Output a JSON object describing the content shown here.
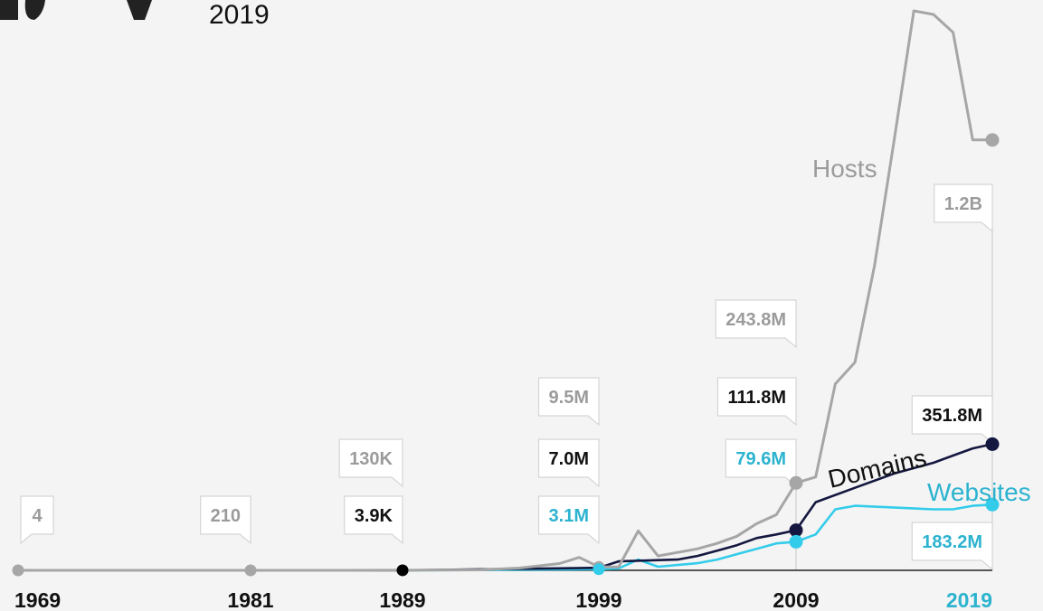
{
  "subtitle": "2019",
  "chart_data": {
    "type": "line",
    "x_ticks": [
      {
        "label": "1969",
        "color": "#111111"
      },
      {
        "label": "1981",
        "color": "#111111"
      },
      {
        "label": "1989",
        "color": "#111111"
      },
      {
        "label": "1999",
        "color": "#111111"
      },
      {
        "label": "2009",
        "color": "#111111"
      },
      {
        "label": "2019",
        "color": "#2bb3cf"
      }
    ],
    "series": [
      {
        "name": "Hosts",
        "color": "#a6a6a6",
        "label_color": "#9b9b9b",
        "points": [
          [
            1969,
            4e-09
          ],
          [
            1981,
            2.1e-07
          ],
          [
            1989,
            0.00013
          ],
          [
            1993,
            0.0012
          ],
          [
            1995,
            0.0066
          ],
          [
            1997,
            0.019
          ],
          [
            1998,
            0.036
          ],
          [
            1999,
            0.0095
          ],
          [
            2000,
            0.0093
          ],
          [
            2001,
            0.11
          ],
          [
            2002,
            0.04
          ],
          [
            2003,
            0.05
          ],
          [
            2004,
            0.06
          ],
          [
            2005,
            0.075
          ],
          [
            2006,
            0.095
          ],
          [
            2007,
            0.13
          ],
          [
            2008,
            0.155
          ],
          [
            2009,
            0.2438
          ],
          [
            2010,
            0.26
          ],
          [
            2011,
            0.52
          ],
          [
            2012,
            0.58
          ],
          [
            2013,
            0.85
          ],
          [
            2014,
            1.2
          ],
          [
            2015,
            1.56
          ],
          [
            2016,
            1.55
          ],
          [
            2017,
            1.5
          ],
          [
            2018,
            1.2
          ],
          [
            2019,
            1.2
          ]
        ]
      },
      {
        "name": "Domains",
        "color": "#14173f",
        "label_color": "#111111",
        "points": [
          [
            1969,
            0
          ],
          [
            1989,
            3.9e-06
          ],
          [
            1999,
            0.007
          ],
          [
            2000,
            0.025
          ],
          [
            2003,
            0.03
          ],
          [
            2004,
            0.04
          ],
          [
            2005,
            0.055
          ],
          [
            2006,
            0.07
          ],
          [
            2007,
            0.09
          ],
          [
            2008,
            0.1
          ],
          [
            2009,
            0.1118
          ],
          [
            2010,
            0.19
          ],
          [
            2012,
            0.23
          ],
          [
            2014,
            0.27
          ],
          [
            2016,
            0.3
          ],
          [
            2017,
            0.32
          ],
          [
            2018,
            0.34
          ],
          [
            2019,
            0.3518
          ]
        ]
      },
      {
        "name": "Websites",
        "color": "#33ccea",
        "label_color": "#2bb3cf",
        "points": [
          [
            1969,
            0
          ],
          [
            1989,
            3.9e-06
          ],
          [
            1999,
            0.0031
          ],
          [
            2000,
            0.005
          ],
          [
            2001,
            0.03
          ],
          [
            2002,
            0.01
          ],
          [
            2004,
            0.02
          ],
          [
            2005,
            0.03
          ],
          [
            2006,
            0.045
          ],
          [
            2007,
            0.06
          ],
          [
            2008,
            0.075
          ],
          [
            2009,
            0.0796
          ],
          [
            2010,
            0.1
          ],
          [
            2011,
            0.17
          ],
          [
            2012,
            0.18
          ],
          [
            2016,
            0.17
          ],
          [
            2017,
            0.17
          ],
          [
            2018,
            0.18
          ],
          [
            2019,
            0.1832
          ]
        ]
      }
    ],
    "markers": [
      {
        "year": 1969,
        "series": "Hosts",
        "color": "#a6a6a6",
        "size": "small"
      },
      {
        "year": 1981,
        "series": "Hosts",
        "color": "#a6a6a6",
        "size": "small"
      },
      {
        "year": 1989,
        "series": "Hosts",
        "color": "#000000",
        "size": "small"
      },
      {
        "year": 1999,
        "series": "Hosts",
        "color": "#a6a6a6",
        "size": "small"
      },
      {
        "year": 1999,
        "series": "Websites",
        "color": "#33ccea",
        "size": "small"
      },
      {
        "year": 2009,
        "series": "Hosts",
        "color": "#a6a6a6",
        "size": "large"
      },
      {
        "year": 2009,
        "series": "Domains",
        "color": "#14173f",
        "size": "large"
      },
      {
        "year": 2009,
        "series": "Websites",
        "color": "#33ccea",
        "size": "large"
      },
      {
        "year": 2019,
        "series": "Hosts",
        "color": "#a6a6a6",
        "size": "large"
      },
      {
        "year": 2019,
        "series": "Domains",
        "color": "#14173f",
        "size": "large"
      },
      {
        "year": 2019,
        "series": "Websites",
        "color": "#33ccea",
        "size": "large"
      }
    ],
    "callouts": [
      {
        "name": "callout-1969-hosts",
        "year": 1969,
        "text": "4",
        "color": "#9b9b9b",
        "level": 0
      },
      {
        "name": "callout-1981-hosts",
        "year": 1981,
        "text": "210",
        "color": "#9b9b9b",
        "level": 0
      },
      {
        "name": "callout-1989-domains",
        "year": 1989,
        "text": "3.9K",
        "color": "#111111",
        "level": 0
      },
      {
        "name": "callout-1989-hosts",
        "year": 1989,
        "text": "130K",
        "color": "#9b9b9b",
        "level": 1
      },
      {
        "name": "callout-1999-websites",
        "year": 1999,
        "text": "3.1M",
        "color": "#2bb3cf",
        "level": 0
      },
      {
        "name": "callout-1999-domains",
        "year": 1999,
        "text": "7.0M",
        "color": "#111111",
        "level": 1
      },
      {
        "name": "callout-1999-hosts",
        "year": 1999,
        "text": "9.5M",
        "color": "#9b9b9b",
        "level": 2
      },
      {
        "name": "callout-2009-websites",
        "year": 2009,
        "text": "79.6M",
        "color": "#2bb3cf",
        "level": 1
      },
      {
        "name": "callout-2009-domains",
        "year": 2009,
        "text": "111.8M",
        "color": "#111111",
        "level": 2
      },
      {
        "name": "callout-2009-hosts",
        "year": 2009,
        "text": "243.8M",
        "color": "#9b9b9b",
        "level": 3
      },
      {
        "name": "callout-2019-hosts",
        "year": 2019,
        "text": "1.2B",
        "color": "#9b9b9b",
        "level": "hosts"
      },
      {
        "name": "callout-2019-domains",
        "year": 2019,
        "text": "351.8M",
        "color": "#111111",
        "level": "domains"
      },
      {
        "name": "callout-2019-websites",
        "year": 2019,
        "text": "183.2M",
        "color": "#2bb3cf",
        "level": "websites"
      }
    ]
  }
}
